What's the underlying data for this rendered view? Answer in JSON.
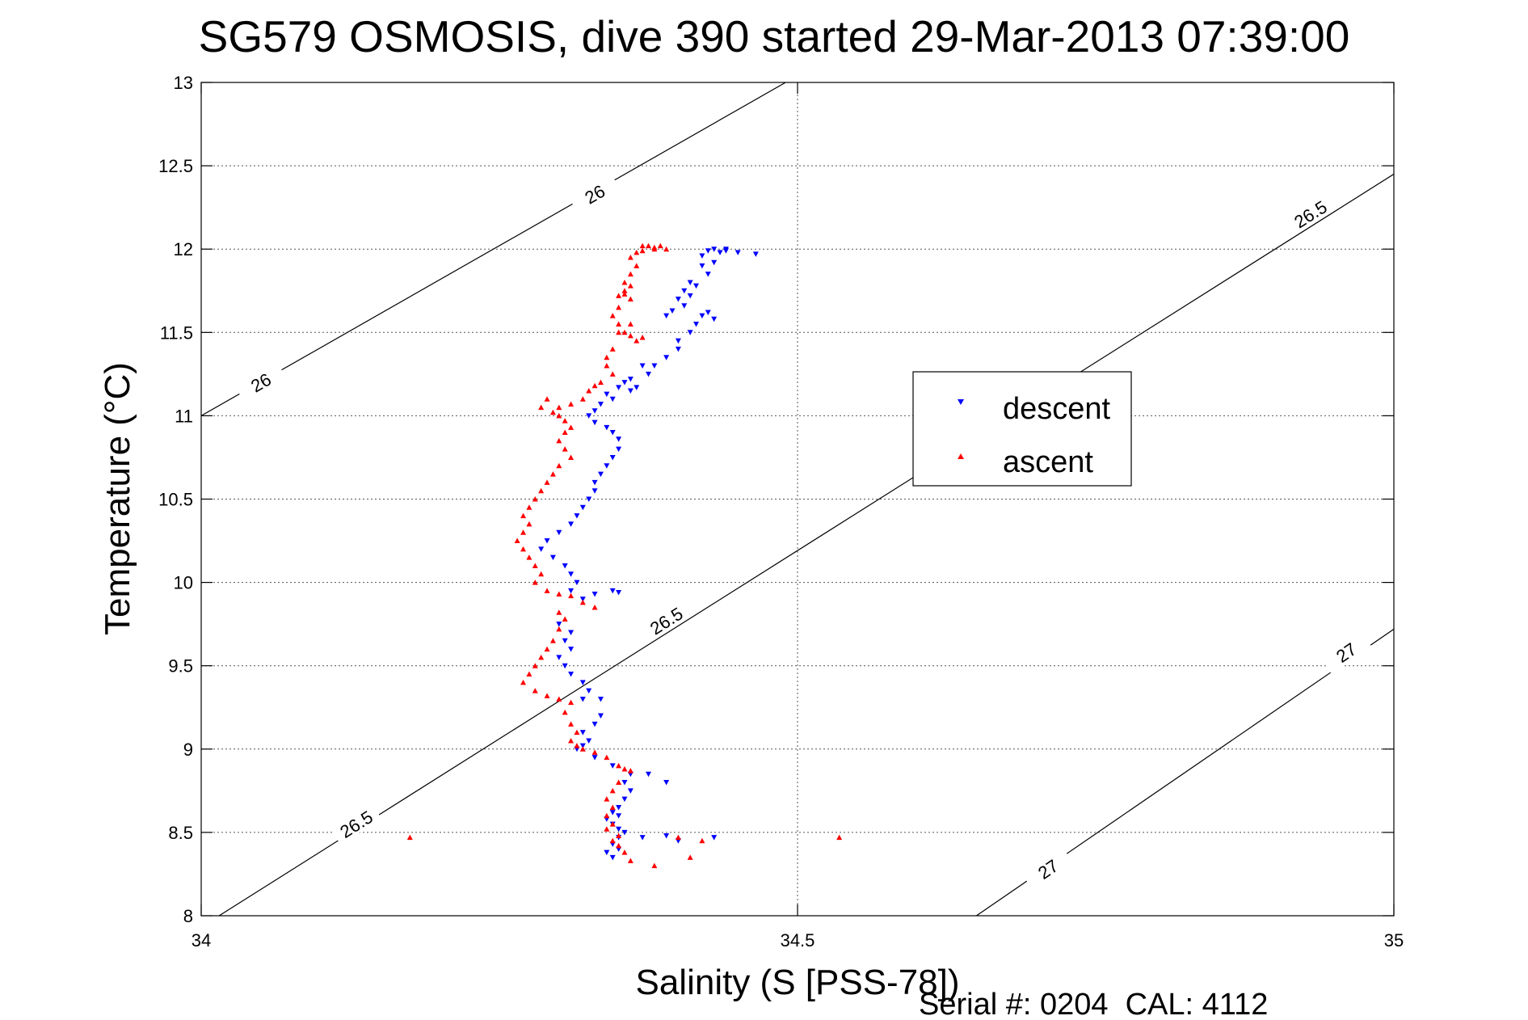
{
  "chart_data": {
    "type": "scatter",
    "title": "SG579 OSMOSIS, dive 390 started 29-Mar-2013 07:39:00",
    "xlabel": "Salinity (S [PSS-78])",
    "ylabel": "Temperature (°C)",
    "footer": "Serial #: 0204  CAL: 4112",
    "xlim": [
      34,
      35
    ],
    "ylim": [
      8,
      13
    ],
    "grid": true,
    "xticks": [
      34,
      34.5,
      35
    ],
    "xtick_labels": [
      "34",
      "34.5",
      "35"
    ],
    "yticks": [
      8,
      8.5,
      9,
      9.5,
      10,
      10.5,
      11,
      11.5,
      12,
      12.5,
      13
    ],
    "ytick_labels": [
      "8",
      "8.5",
      "9",
      "9.5",
      "10",
      "10.5",
      "11",
      "11.5",
      "12",
      "12.5",
      "13"
    ],
    "legend_position": "center-right",
    "density_contours": [
      {
        "label": "26",
        "points": [
          [
            34.0,
            11.0
          ],
          [
            34.49,
            13.0
          ]
        ],
        "label_positions": [
          [
            34.05,
            11.2
          ],
          [
            34.33,
            12.33
          ]
        ]
      },
      {
        "label": "26.5",
        "points": [
          [
            34.015,
            8.0
          ],
          [
            35.0,
            12.45
          ]
        ],
        "label_positions": [
          [
            34.13,
            8.55
          ],
          [
            34.39,
            9.77
          ],
          [
            34.93,
            12.21
          ]
        ]
      },
      {
        "label": "27",
        "points": [
          [
            34.65,
            8.0
          ],
          [
            35.0,
            9.72
          ]
        ],
        "label_positions": [
          [
            34.71,
            8.28
          ],
          [
            34.96,
            9.58
          ]
        ]
      }
    ],
    "series": [
      {
        "name": "descent",
        "marker": "down-triangle",
        "color": "#0000ff",
        "points": [
          [
            34.465,
            11.97
          ],
          [
            34.45,
            11.98
          ],
          [
            34.44,
            12.0
          ],
          [
            34.43,
            12.0
          ],
          [
            34.425,
            11.99
          ],
          [
            34.44,
            11.99
          ],
          [
            34.435,
            11.98
          ],
          [
            34.42,
            11.96
          ],
          [
            34.43,
            11.92
          ],
          [
            34.42,
            11.9
          ],
          [
            34.425,
            11.85
          ],
          [
            34.41,
            11.8
          ],
          [
            34.415,
            11.78
          ],
          [
            34.405,
            11.75
          ],
          [
            34.41,
            11.72
          ],
          [
            34.4,
            11.7
          ],
          [
            34.405,
            11.66
          ],
          [
            34.395,
            11.63
          ],
          [
            34.39,
            11.6
          ],
          [
            34.42,
            11.6
          ],
          [
            34.425,
            11.62
          ],
          [
            34.43,
            11.58
          ],
          [
            34.415,
            11.55
          ],
          [
            34.41,
            11.5
          ],
          [
            34.4,
            11.45
          ],
          [
            34.4,
            11.4
          ],
          [
            34.39,
            11.35
          ],
          [
            34.38,
            11.3
          ],
          [
            34.37,
            11.3
          ],
          [
            34.375,
            11.25
          ],
          [
            34.36,
            11.22
          ],
          [
            34.365,
            11.17
          ],
          [
            34.36,
            11.15
          ],
          [
            34.355,
            11.2
          ],
          [
            34.35,
            11.17
          ],
          [
            34.34,
            11.13
          ],
          [
            34.345,
            11.1
          ],
          [
            34.335,
            11.07
          ],
          [
            34.33,
            11.03
          ],
          [
            34.325,
            11.0
          ],
          [
            34.33,
            10.96
          ],
          [
            34.34,
            10.93
          ],
          [
            34.345,
            10.9
          ],
          [
            34.35,
            10.86
          ],
          [
            34.35,
            10.8
          ],
          [
            34.345,
            10.75
          ],
          [
            34.34,
            10.7
          ],
          [
            34.335,
            10.65
          ],
          [
            34.33,
            10.6
          ],
          [
            34.33,
            10.55
          ],
          [
            34.325,
            10.5
          ],
          [
            34.32,
            10.45
          ],
          [
            34.315,
            10.4
          ],
          [
            34.31,
            10.35
          ],
          [
            34.3,
            10.3
          ],
          [
            34.29,
            10.25
          ],
          [
            34.285,
            10.2
          ],
          [
            34.295,
            10.15
          ],
          [
            34.305,
            10.1
          ],
          [
            34.31,
            10.05
          ],
          [
            34.315,
            10.0
          ],
          [
            34.31,
            9.95
          ],
          [
            34.32,
            9.9
          ],
          [
            34.33,
            9.93
          ],
          [
            34.345,
            9.95
          ],
          [
            34.35,
            9.94
          ],
          [
            34.3,
            9.75
          ],
          [
            34.31,
            9.7
          ],
          [
            34.305,
            9.65
          ],
          [
            34.31,
            9.6
          ],
          [
            34.3,
            9.55
          ],
          [
            34.305,
            9.5
          ],
          [
            34.31,
            9.45
          ],
          [
            34.32,
            9.4
          ],
          [
            34.325,
            9.35
          ],
          [
            34.32,
            9.3
          ],
          [
            34.335,
            9.3
          ],
          [
            34.335,
            9.2
          ],
          [
            34.33,
            9.15
          ],
          [
            34.32,
            9.1
          ],
          [
            34.325,
            9.05
          ],
          [
            34.32,
            9.02
          ],
          [
            34.315,
            9.0
          ],
          [
            34.33,
            8.95
          ],
          [
            34.345,
            8.9
          ],
          [
            34.36,
            8.85
          ],
          [
            34.355,
            8.8
          ],
          [
            34.36,
            8.75
          ],
          [
            34.355,
            8.7
          ],
          [
            34.35,
            8.65
          ],
          [
            34.345,
            8.62
          ],
          [
            34.35,
            8.6
          ],
          [
            34.34,
            8.58
          ],
          [
            34.345,
            8.55
          ],
          [
            34.35,
            8.52
          ],
          [
            34.355,
            8.5
          ],
          [
            34.35,
            8.47
          ],
          [
            34.345,
            8.43
          ],
          [
            34.35,
            8.4
          ],
          [
            34.34,
            8.38
          ],
          [
            34.345,
            8.35
          ],
          [
            34.37,
            8.47
          ],
          [
            34.39,
            8.48
          ],
          [
            34.4,
            8.45
          ],
          [
            34.43,
            8.47
          ],
          [
            34.375,
            8.85
          ],
          [
            34.39,
            8.8
          ]
        ]
      },
      {
        "name": "ascent",
        "marker": "up-triangle",
        "color": "#ff0000",
        "points": [
          [
            34.37,
            12.02
          ],
          [
            34.375,
            12.02
          ],
          [
            34.38,
            12.01
          ],
          [
            34.385,
            12.02
          ],
          [
            34.39,
            12.0
          ],
          [
            34.38,
            12.0
          ],
          [
            34.37,
            11.99
          ],
          [
            34.365,
            11.98
          ],
          [
            34.36,
            11.95
          ],
          [
            34.365,
            11.9
          ],
          [
            34.36,
            11.85
          ],
          [
            34.355,
            11.8
          ],
          [
            34.36,
            11.78
          ],
          [
            34.355,
            11.75
          ],
          [
            34.35,
            11.72
          ],
          [
            34.35,
            11.65
          ],
          [
            34.345,
            11.6
          ],
          [
            34.35,
            11.55
          ],
          [
            34.355,
            11.5
          ],
          [
            34.36,
            11.48
          ],
          [
            34.365,
            11.45
          ],
          [
            34.37,
            11.47
          ],
          [
            34.345,
            11.4
          ],
          [
            34.34,
            11.35
          ],
          [
            34.34,
            11.3
          ],
          [
            34.345,
            11.25
          ],
          [
            34.335,
            11.2
          ],
          [
            34.33,
            11.18
          ],
          [
            34.325,
            11.15
          ],
          [
            34.32,
            11.1
          ],
          [
            34.31,
            11.07
          ],
          [
            34.3,
            11.05
          ],
          [
            34.295,
            11.02
          ],
          [
            34.3,
            11.0
          ],
          [
            34.305,
            10.97
          ],
          [
            34.31,
            10.93
          ],
          [
            34.305,
            10.9
          ],
          [
            34.3,
            10.85
          ],
          [
            34.305,
            10.8
          ],
          [
            34.31,
            10.75
          ],
          [
            34.3,
            10.7
          ],
          [
            34.295,
            10.65
          ],
          [
            34.29,
            10.6
          ],
          [
            34.285,
            10.55
          ],
          [
            34.28,
            10.5
          ],
          [
            34.275,
            10.45
          ],
          [
            34.27,
            10.4
          ],
          [
            34.275,
            10.35
          ],
          [
            34.27,
            10.3
          ],
          [
            34.265,
            10.25
          ],
          [
            34.27,
            10.2
          ],
          [
            34.275,
            10.15
          ],
          [
            34.28,
            10.1
          ],
          [
            34.285,
            10.05
          ],
          [
            34.28,
            10.0
          ],
          [
            34.29,
            9.95
          ],
          [
            34.3,
            9.93
          ],
          [
            34.31,
            9.92
          ],
          [
            34.32,
            9.88
          ],
          [
            34.33,
            9.85
          ],
          [
            34.3,
            9.82
          ],
          [
            34.305,
            9.78
          ],
          [
            34.3,
            9.72
          ],
          [
            34.295,
            9.65
          ],
          [
            34.29,
            9.6
          ],
          [
            34.285,
            9.55
          ],
          [
            34.28,
            9.5
          ],
          [
            34.275,
            9.45
          ],
          [
            34.27,
            9.4
          ],
          [
            34.28,
            9.35
          ],
          [
            34.29,
            9.32
          ],
          [
            34.3,
            9.3
          ],
          [
            34.31,
            9.28
          ],
          [
            34.305,
            9.22
          ],
          [
            34.31,
            9.15
          ],
          [
            34.315,
            9.1
          ],
          [
            34.31,
            9.05
          ],
          [
            34.315,
            9.02
          ],
          [
            34.32,
            9.0
          ],
          [
            34.33,
            8.98
          ],
          [
            34.34,
            8.95
          ],
          [
            34.35,
            8.9
          ],
          [
            34.355,
            8.88
          ],
          [
            34.36,
            8.87
          ],
          [
            34.35,
            8.8
          ],
          [
            34.345,
            8.75
          ],
          [
            34.34,
            8.7
          ],
          [
            34.345,
            8.65
          ],
          [
            34.34,
            8.6
          ],
          [
            34.345,
            8.55
          ],
          [
            34.34,
            8.52
          ],
          [
            34.35,
            8.48
          ],
          [
            34.345,
            8.45
          ],
          [
            34.35,
            8.42
          ],
          [
            34.355,
            8.38
          ],
          [
            34.36,
            8.33
          ],
          [
            34.38,
            8.3
          ],
          [
            34.41,
            8.35
          ],
          [
            34.4,
            8.47
          ],
          [
            34.42,
            8.45
          ],
          [
            34.175,
            8.47
          ],
          [
            34.535,
            8.47
          ],
          [
            34.29,
            11.1
          ],
          [
            34.285,
            11.05
          ],
          [
            34.36,
            11.7
          ],
          [
            34.355,
            11.73
          ],
          [
            34.35,
            11.5
          ],
          [
            34.36,
            11.55
          ]
        ]
      }
    ]
  }
}
